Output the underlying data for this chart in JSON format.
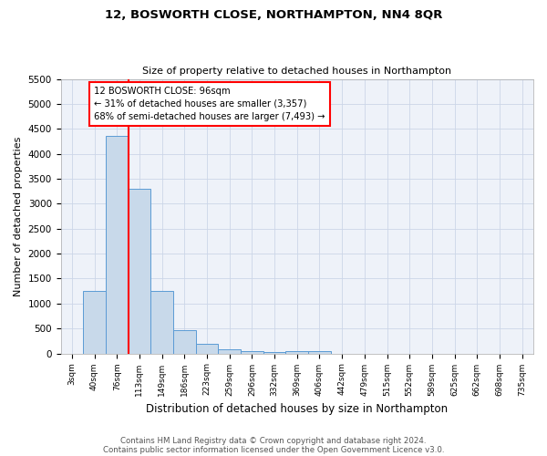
{
  "title1": "12, BOSWORTH CLOSE, NORTHAMPTON, NN4 8QR",
  "title2": "Size of property relative to detached houses in Northampton",
  "xlabel": "Distribution of detached houses by size in Northampton",
  "ylabel": "Number of detached properties",
  "categories": [
    "3sqm",
    "40sqm",
    "76sqm",
    "113sqm",
    "149sqm",
    "186sqm",
    "223sqm",
    "259sqm",
    "296sqm",
    "332sqm",
    "369sqm",
    "406sqm",
    "442sqm",
    "479sqm",
    "515sqm",
    "552sqm",
    "589sqm",
    "625sqm",
    "662sqm",
    "698sqm",
    "735sqm"
  ],
  "values": [
    0,
    1250,
    4350,
    3300,
    1250,
    470,
    200,
    90,
    50,
    30,
    50,
    50,
    0,
    0,
    0,
    0,
    0,
    0,
    0,
    0,
    0
  ],
  "bar_color": "#c8d9ea",
  "bar_edge_color": "#5b9bd5",
  "annotation_title": "12 BOSWORTH CLOSE: 96sqm",
  "annotation_line1": "← 31% of detached houses are smaller (3,357)",
  "annotation_line2": "68% of semi-detached houses are larger (7,493) →",
  "ylim": [
    0,
    5500
  ],
  "yticks": [
    0,
    500,
    1000,
    1500,
    2000,
    2500,
    3000,
    3500,
    4000,
    4500,
    5000,
    5500
  ],
  "footer1": "Contains HM Land Registry data © Crown copyright and database right 2024.",
  "footer2": "Contains public sector information licensed under the Open Government Licence v3.0.",
  "grid_color": "#ccd6e8",
  "bg_color": "#eef2f9"
}
